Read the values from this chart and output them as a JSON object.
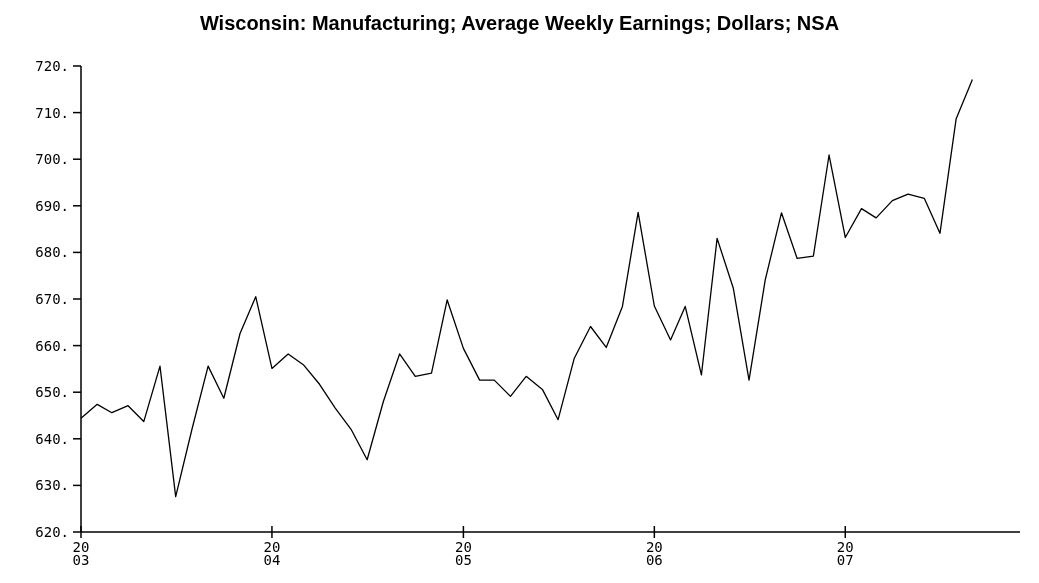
{
  "chart_data": {
    "type": "line",
    "title": "Wisconsin: Manufacturing; Average Weekly Earnings; Dollars; NSA",
    "x": [
      "2003-01",
      "2003-02",
      "2003-03",
      "2003-04",
      "2003-05",
      "2003-06",
      "2003-07",
      "2003-08",
      "2003-09",
      "2003-10",
      "2003-11",
      "2003-12",
      "2004-01",
      "2004-02",
      "2004-03",
      "2004-04",
      "2004-05",
      "2004-06",
      "2004-07",
      "2004-08",
      "2004-09",
      "2004-10",
      "2004-11",
      "2004-12",
      "2005-01",
      "2005-02",
      "2005-03",
      "2005-04",
      "2005-05",
      "2005-06",
      "2005-07",
      "2005-08",
      "2005-09",
      "2005-10",
      "2005-11",
      "2005-12",
      "2006-01",
      "2006-02",
      "2006-03",
      "2006-04",
      "2006-05",
      "2006-06",
      "2006-07",
      "2006-08",
      "2006-09",
      "2006-10",
      "2006-11",
      "2006-12",
      "2007-01",
      "2007-02",
      "2007-03",
      "2007-04",
      "2007-05",
      "2007-06",
      "2007-07",
      "2007-08",
      "2007-09"
    ],
    "series": [
      {
        "color": "#000000",
        "values": [
          644.4,
          647.4,
          645.6,
          647.1,
          643.7,
          655.6,
          627.6,
          642,
          655.6,
          648.7,
          662.6,
          670.5,
          655.1,
          658.2,
          655.9,
          651.7,
          646.6,
          641.9,
          635.5,
          648,
          658.2,
          653.4,
          654.1,
          669.8,
          659.4,
          652.6,
          652.6,
          649.1,
          653.4,
          650.6,
          644.1,
          657.3,
          664.1,
          659.6,
          668.4,
          688.6,
          668.5,
          661.2,
          668.4,
          653.7,
          683,
          672.3,
          652.6,
          674.1,
          688.5,
          678.7,
          679.2,
          700.9,
          683.2,
          689.4,
          687.4,
          691.1,
          692.5,
          691.6,
          684.1,
          708.7,
          717.1
        ]
      }
    ],
    "xlim": [
      "2003-01",
      "2007-12"
    ],
    "xticks": [
      {
        "value": "2003-01",
        "label": "20\n03"
      },
      {
        "value": "2004-01",
        "label": "20\n04"
      },
      {
        "value": "2005-01",
        "label": "20\n05"
      },
      {
        "value": "2006-01",
        "label": "20\n06"
      },
      {
        "value": "2007-01",
        "label": "20\n07"
      }
    ],
    "ylim": [
      620,
      720
    ],
    "yticks": [
      {
        "value": 620,
        "label": "620."
      },
      {
        "value": 630,
        "label": "630."
      },
      {
        "value": 640,
        "label": "640."
      },
      {
        "value": 650,
        "label": "650."
      },
      {
        "value": 660,
        "label": "660."
      },
      {
        "value": 670,
        "label": "670."
      },
      {
        "value": 680,
        "label": "680."
      },
      {
        "value": 690,
        "label": "690."
      },
      {
        "value": 700,
        "label": "700."
      },
      {
        "value": 710,
        "label": "710."
      },
      {
        "value": 720,
        "label": "720."
      }
    ],
    "grid": false
  }
}
